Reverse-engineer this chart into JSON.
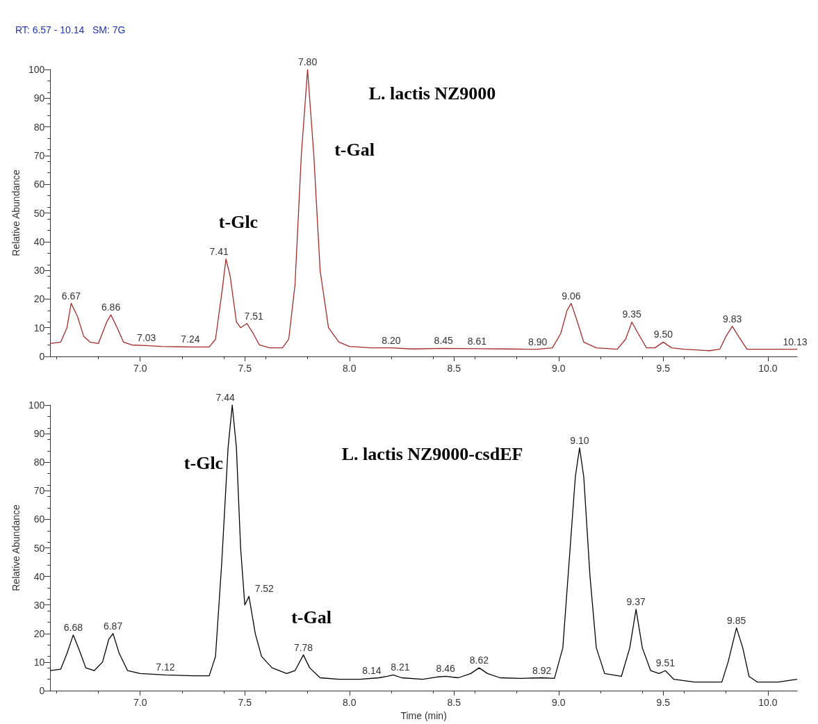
{
  "chart_data": [
    {
      "type": "line",
      "title": "L. lactis NZ9000",
      "subtitle": "RT: 6.57 - 10.14   SM: 7G",
      "ylabel": "Relative Abundance",
      "x": [
        6.57,
        6.62,
        6.65,
        6.67,
        6.7,
        6.73,
        6.76,
        6.8,
        6.84,
        6.86,
        6.89,
        6.92,
        6.96,
        7.03,
        7.1,
        7.24,
        7.33,
        7.36,
        7.39,
        7.41,
        7.43,
        7.46,
        7.48,
        7.51,
        7.54,
        7.57,
        7.62,
        7.68,
        7.71,
        7.74,
        7.77,
        7.8,
        7.83,
        7.86,
        7.9,
        7.95,
        8.0,
        8.1,
        8.2,
        8.3,
        8.45,
        8.61,
        8.75,
        8.9,
        8.97,
        9.01,
        9.04,
        9.06,
        9.09,
        9.12,
        9.18,
        9.28,
        9.32,
        9.35,
        9.38,
        9.42,
        9.46,
        9.5,
        9.54,
        9.6,
        9.72,
        9.77,
        9.8,
        9.83,
        9.86,
        9.9,
        10.0,
        10.13,
        10.14
      ],
      "series": [
        {
          "color": "#a52a2a",
          "values": [
            4.5,
            5,
            10,
            18.5,
            14,
            7,
            5,
            4.5,
            12,
            14.5,
            10,
            5,
            4,
            3.8,
            3.5,
            3.3,
            3.3,
            6,
            22,
            34,
            28,
            12,
            10,
            11.5,
            8,
            4,
            3,
            3,
            6,
            25,
            70,
            100,
            70,
            30,
            10,
            5,
            3.5,
            3,
            3,
            2.6,
            2.8,
            2.7,
            2.6,
            2.5,
            3,
            8,
            16,
            18.5,
            12,
            5,
            3,
            2.5,
            6,
            12,
            8,
            3,
            3,
            5,
            3,
            2.5,
            2,
            2.5,
            7,
            10.5,
            7,
            2.5,
            2.5,
            2.5,
            2.5
          ]
        }
      ],
      "xlim": [
        6.57,
        10.14
      ],
      "xticks": [
        {
          "value": 7,
          "label": "7.0"
        },
        {
          "value": 7.5,
          "label": "7.5"
        },
        {
          "value": 8,
          "label": "8.0"
        },
        {
          "value": 8.5,
          "label": "8.5"
        },
        {
          "value": 9,
          "label": "9.0"
        },
        {
          "value": 9.5,
          "label": "9.5"
        },
        {
          "value": 10,
          "label": "10.0"
        }
      ],
      "ylim": [
        0,
        100
      ],
      "yticks": [
        0,
        10,
        20,
        30,
        40,
        50,
        60,
        70,
        80,
        90,
        100
      ],
      "annotations": [
        {
          "text": "6.67",
          "x": 6.67,
          "y": 18.5
        },
        {
          "text": "6.86",
          "x": 6.86,
          "y": 14.5
        },
        {
          "text": "7.03",
          "x": 7.03,
          "y": 3.8
        },
        {
          "text": "7.24",
          "x": 7.24,
          "y": 3.3
        },
        {
          "text": "7.41",
          "x": 7.41,
          "y": 34
        },
        {
          "text": "7.51",
          "x": 7.51,
          "y": 11.5
        },
        {
          "text": "7.80",
          "x": 7.8,
          "y": 100
        },
        {
          "text": "8.20",
          "x": 8.2,
          "y": 3
        },
        {
          "text": "8.45",
          "x": 8.45,
          "y": 2.8
        },
        {
          "text": "8.61",
          "x": 8.61,
          "y": 2.7
        },
        {
          "text": "8.90",
          "x": 8.9,
          "y": 2.5
        },
        {
          "text": "9.06",
          "x": 9.06,
          "y": 18.5
        },
        {
          "text": "9.35",
          "x": 9.35,
          "y": 12
        },
        {
          "text": "9.50",
          "x": 9.5,
          "y": 5
        },
        {
          "text": "9.83",
          "x": 9.83,
          "y": 10.5
        },
        {
          "text": "10.13",
          "x": 10.13,
          "y": 2.5
        },
        "t-Glc",
        "t-Gal"
      ]
    },
    {
      "type": "line",
      "title": "L. lactis NZ9000-csdEF",
      "xlabel": "Time (min)",
      "ylabel": "Relative Abundance",
      "x": [
        6.57,
        6.62,
        6.65,
        6.68,
        6.71,
        6.74,
        6.78,
        6.82,
        6.85,
        6.87,
        6.9,
        6.94,
        7.0,
        7.12,
        7.25,
        7.33,
        7.36,
        7.39,
        7.42,
        7.44,
        7.46,
        7.48,
        7.5,
        7.52,
        7.55,
        7.58,
        7.63,
        7.7,
        7.74,
        7.78,
        7.81,
        7.86,
        7.95,
        8.05,
        8.14,
        8.18,
        8.21,
        8.25,
        8.35,
        8.42,
        8.46,
        8.52,
        8.58,
        8.62,
        8.66,
        8.72,
        8.82,
        8.92,
        8.98,
        9.02,
        9.05,
        9.08,
        9.1,
        9.12,
        9.15,
        9.18,
        9.22,
        9.3,
        9.34,
        9.37,
        9.4,
        9.44,
        9.48,
        9.51,
        9.55,
        9.65,
        9.78,
        9.81,
        9.85,
        9.88,
        9.91,
        9.95,
        10.05,
        10.14
      ],
      "series": [
        {
          "color": "#000000",
          "values": [
            7,
            7.5,
            13,
            19.5,
            14,
            8,
            7,
            10,
            18,
            20,
            13,
            7,
            6,
            5.5,
            5.2,
            5.2,
            12,
            45,
            85,
            100,
            85,
            50,
            30,
            33,
            20,
            12,
            8,
            6,
            7,
            12.5,
            8,
            4.5,
            4,
            4,
            4.5,
            5,
            5.5,
            4.5,
            4,
            4.8,
            5,
            4.5,
            6,
            8,
            6,
            4.5,
            4.3,
            4.5,
            4.3,
            15,
            45,
            75,
            85,
            75,
            40,
            15,
            6,
            5,
            15,
            28.5,
            15,
            7,
            6,
            7,
            4,
            3,
            3,
            10,
            22,
            15,
            5,
            3,
            3,
            4
          ]
        }
      ],
      "xlim": [
        6.57,
        10.14
      ],
      "xticks": [
        {
          "value": 7,
          "label": "7.0"
        },
        {
          "value": 7.5,
          "label": "7.5"
        },
        {
          "value": 8,
          "label": "8.0"
        },
        {
          "value": 8.5,
          "label": "8.5"
        },
        {
          "value": 9,
          "label": "9.0"
        },
        {
          "value": 9.5,
          "label": "9.5"
        },
        {
          "value": 10,
          "label": "10.0"
        }
      ],
      "ylim": [
        0,
        100
      ],
      "yticks": [
        0,
        10,
        20,
        30,
        40,
        50,
        60,
        70,
        80,
        90,
        100
      ],
      "annotations": [
        {
          "text": "6.68",
          "x": 6.68,
          "y": 19.5
        },
        {
          "text": "6.87",
          "x": 6.87,
          "y": 20
        },
        {
          "text": "7.12",
          "x": 7.12,
          "y": 5.5
        },
        {
          "text": "7.44",
          "x": 7.44,
          "y": 100
        },
        {
          "text": "7.52",
          "x": 7.52,
          "y": 33
        },
        {
          "text": "7.78",
          "x": 7.78,
          "y": 12.5
        },
        {
          "text": "8.14",
          "x": 8.14,
          "y": 4.5
        },
        {
          "text": "8.21",
          "x": 8.21,
          "y": 5.5
        },
        {
          "text": "8.46",
          "x": 8.46,
          "y": 5
        },
        {
          "text": "8.62",
          "x": 8.62,
          "y": 8
        },
        {
          "text": "8.92",
          "x": 8.92,
          "y": 4.5
        },
        {
          "text": "9.10",
          "x": 9.1,
          "y": 85
        },
        {
          "text": "9.37",
          "x": 9.37,
          "y": 28.5
        },
        {
          "text": "9.51",
          "x": 9.51,
          "y": 7
        },
        {
          "text": "9.85",
          "x": 9.85,
          "y": 22
        },
        "t-Glc",
        "t-Gal"
      ]
    }
  ]
}
